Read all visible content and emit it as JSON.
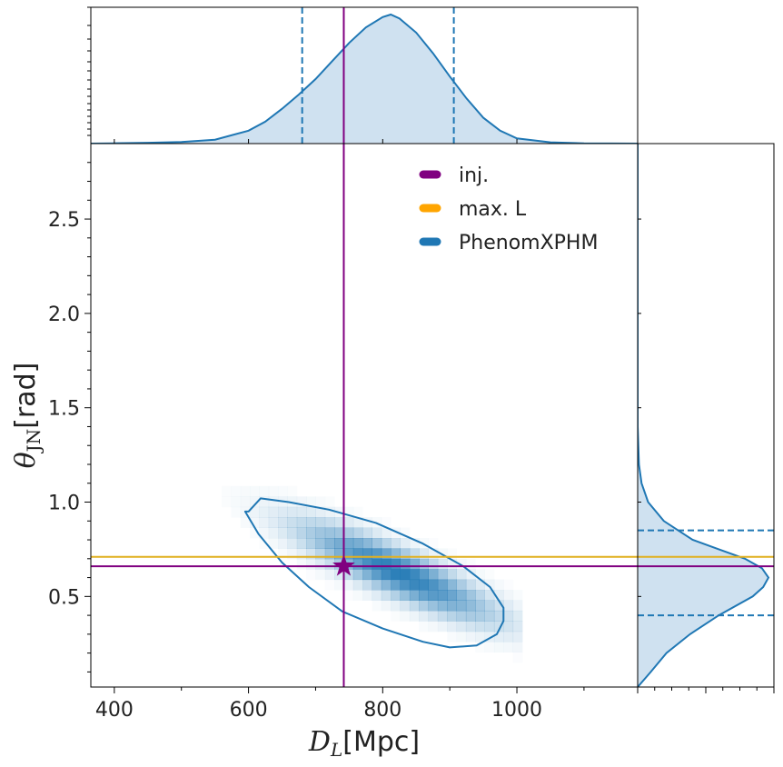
{
  "chart_data": {
    "type": "heatmap",
    "colors": {
      "inj": "#800080",
      "maxL": "#FFA500",
      "maxL_line": "#E0B020",
      "phenom": "#1f77b4",
      "fill": "#cfe1f0"
    },
    "xlabel_math": "D",
    "xlabel_sub": "L",
    "xlabel_unit": "[Mpc]",
    "ylabel_math": "θ",
    "ylabel_sub": "JN",
    "ylabel_unit": "[rad]",
    "xlim": [
      365,
      1180
    ],
    "ylim": [
      0.02,
      2.9
    ],
    "xticks": [
      400,
      600,
      800,
      1000
    ],
    "xtick_labels": [
      "400",
      "600",
      "800",
      "1000"
    ],
    "yticks": [
      0.5,
      1.0,
      1.5,
      2.0,
      2.5
    ],
    "ytick_labels": [
      "0.5",
      "1.0",
      "1.5",
      "2.0",
      "2.5"
    ],
    "legend": {
      "position": "upper-right",
      "entries": [
        {
          "label": "inj.",
          "color": "#800080"
        },
        {
          "label": "max. L",
          "color": "#FFA500"
        },
        {
          "label": "PhenomXPHM",
          "color": "#1f77b4"
        }
      ]
    },
    "injection": {
      "DL": 742,
      "theta_JN": 0.66
    },
    "max_likelihood": {
      "theta_JN": 0.71
    },
    "DL_interval": [
      680,
      906
    ],
    "theta_interval": [
      0.4,
      0.85
    ],
    "DL_marginal": {
      "x": [
        365,
        400,
        450,
        500,
        550,
        600,
        625,
        650,
        675,
        700,
        725,
        750,
        775,
        800,
        812,
        825,
        850,
        875,
        900,
        925,
        950,
        975,
        1000,
        1050,
        1100,
        1180
      ],
      "density": [
        0.0,
        0.002,
        0.006,
        0.012,
        0.03,
        0.1,
        0.17,
        0.27,
        0.38,
        0.5,
        0.64,
        0.78,
        0.9,
        0.98,
        1.0,
        0.97,
        0.86,
        0.7,
        0.52,
        0.35,
        0.2,
        0.1,
        0.04,
        0.01,
        0.002,
        0.0
      ]
    },
    "theta_marginal": {
      "theta": [
        0.02,
        0.1,
        0.2,
        0.3,
        0.4,
        0.5,
        0.55,
        0.6,
        0.65,
        0.7,
        0.75,
        0.8,
        0.9,
        1.0,
        1.1,
        1.2,
        1.3,
        1.4,
        2.9
      ],
      "density": [
        0.0,
        0.1,
        0.22,
        0.4,
        0.62,
        0.88,
        0.96,
        1.0,
        0.95,
        0.82,
        0.62,
        0.42,
        0.2,
        0.08,
        0.03,
        0.01,
        0.005,
        0.0,
        0.0
      ]
    },
    "contour_90": {
      "DL": [
        600,
        618,
        660,
        720,
        790,
        860,
        920,
        960,
        980,
        980,
        970,
        940,
        900,
        860,
        800,
        740,
        690,
        650,
        615,
        595,
        600
      ],
      "theta": [
        0.95,
        1.02,
        1.0,
        0.96,
        0.89,
        0.78,
        0.66,
        0.55,
        0.44,
        0.37,
        0.3,
        0.24,
        0.23,
        0.26,
        0.33,
        0.42,
        0.55,
        0.68,
        0.83,
        0.95,
        0.95
      ]
    },
    "heatmap_peak": {
      "DL": 815,
      "theta_JN": 0.6
    }
  }
}
